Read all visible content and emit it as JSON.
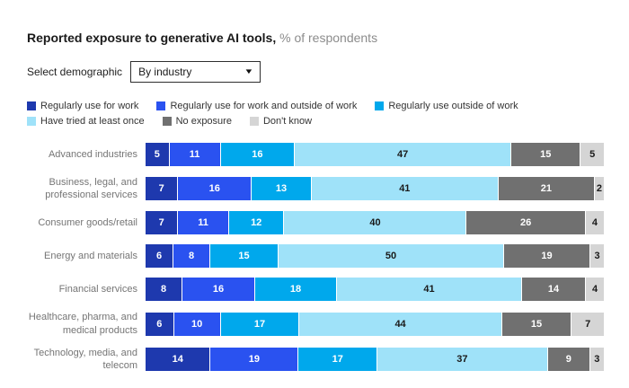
{
  "title": {
    "main": "Reported exposure to generative AI tools,",
    "suffix": " % of respondents"
  },
  "controls": {
    "label": "Select demographic",
    "dropdown_value": "By industry",
    "dropdown_icon": "caret-down-icon"
  },
  "chart_data": {
    "type": "bar",
    "orientation": "horizontal",
    "stacked": true,
    "title": "Reported exposure to generative AI tools",
    "unit": "% of respondents",
    "xlim": [
      0,
      100
    ],
    "grid": false,
    "legend_position": "top",
    "categories": [
      "Advanced industries",
      "Business, legal, and professional services",
      "Consumer goods/retail",
      "Energy and materials",
      "Financial services",
      "Healthcare, pharma, and medical products",
      "Technology, media, and telecom"
    ],
    "series": [
      {
        "name": "Regularly use for work",
        "color": "#1e39ae",
        "text_color": "#ffffff",
        "values": [
          5,
          7,
          7,
          6,
          8,
          6,
          14
        ]
      },
      {
        "name": "Regularly use for work and outside of work",
        "color": "#2a52f0",
        "text_color": "#ffffff",
        "values": [
          11,
          16,
          11,
          8,
          16,
          10,
          19
        ]
      },
      {
        "name": "Regularly use outside of work",
        "color": "#00a8ec",
        "text_color": "#ffffff",
        "values": [
          16,
          13,
          12,
          15,
          18,
          17,
          17
        ]
      },
      {
        "name": "Have tried at least once",
        "color": "#9fe2f9",
        "text_color": "#1a1a1a",
        "values": [
          47,
          41,
          40,
          50,
          41,
          44,
          37
        ]
      },
      {
        "name": "No exposure",
        "color": "#707070",
        "text_color": "#ffffff",
        "values": [
          15,
          21,
          26,
          19,
          14,
          15,
          9
        ]
      },
      {
        "name": "Don't know",
        "color": "#d5d5d5",
        "text_color": "#1a1a1a",
        "values": [
          5,
          2,
          4,
          3,
          4,
          7,
          3
        ]
      }
    ]
  }
}
